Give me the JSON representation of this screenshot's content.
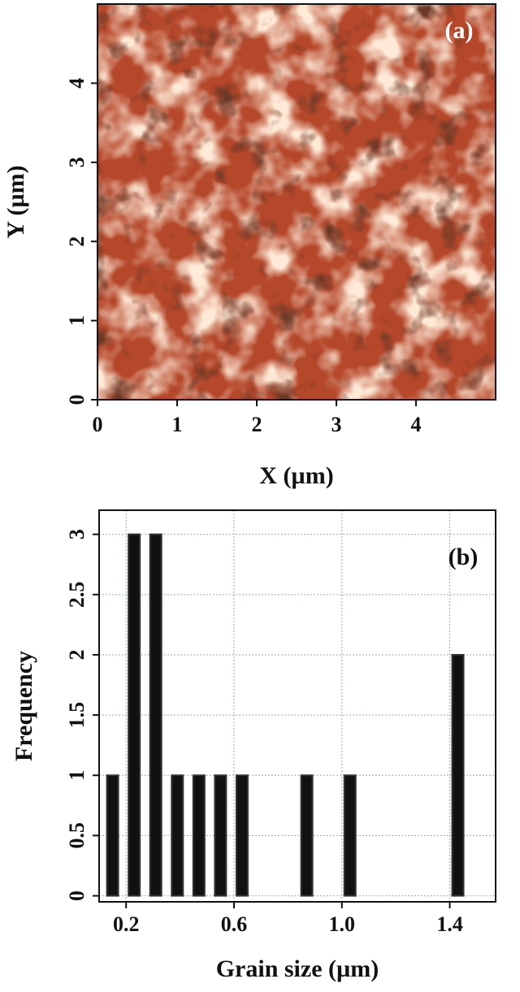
{
  "chart_data": [
    {
      "type": "image",
      "annotation": "(a)",
      "xlabel": "X (µm)",
      "ylabel": "Y (µm)",
      "xlim": [
        0,
        5
      ],
      "ylim": [
        0,
        5
      ],
      "xticks": [
        0,
        1,
        2,
        3,
        4
      ],
      "yticks": [
        0,
        1,
        2,
        3,
        4
      ]
    },
    {
      "type": "bar",
      "annotation": "(b)",
      "xlabel": "Grain size (µm)",
      "ylabel": "Frequency",
      "x": [
        0.15,
        0.23,
        0.31,
        0.39,
        0.47,
        0.55,
        0.63,
        0.71,
        0.79,
        0.87,
        0.95,
        1.03,
        1.11,
        1.19,
        1.27,
        1.35,
        1.43,
        1.51
      ],
      "values": [
        1,
        3,
        3,
        1,
        1,
        1,
        1,
        0,
        0,
        1,
        0,
        1,
        0,
        0,
        0,
        0,
        2,
        0
      ],
      "color": "#111111",
      "grid": true,
      "xlim": [
        0.1,
        1.57
      ],
      "ylim": [
        -0.05,
        3.2
      ],
      "xticks": [
        0.2,
        0.6,
        {
          "value": 1.0,
          "label": "1.0"
        },
        1.4
      ],
      "yticks": [
        0,
        0.5,
        1,
        1.5,
        2,
        2.5,
        3
      ]
    }
  ]
}
